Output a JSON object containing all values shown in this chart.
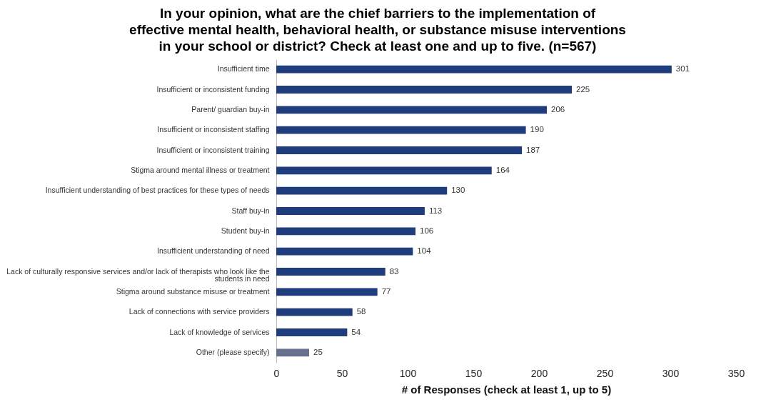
{
  "chart_data": {
    "type": "bar",
    "orientation": "horizontal",
    "title": "In your opinion, what are the chief barriers to the implementation of effective mental health, behavioral health, or substance misuse interventions in your school or district? Check at least one and up to five. (n=567)",
    "xlabel": "# of Responses (check at least 1, up to 5)",
    "categories": [
      "Insufficient time",
      "Insufficient or inconsistent funding",
      "Parent/ guardian buy-in",
      "Insufficient or inconsistent staffing",
      "Insufficient or inconsistent training",
      "Stigma around mental illness or treatment",
      "Insufficient understanding of best practices for these types of needs",
      "Staff buy-in",
      "Student buy-in",
      "Insufficient understanding of need",
      "Lack of culturally responsive services and/or lack of therapists who look like the students in need",
      "Stigma around substance misuse or treatment",
      "Lack of connections with service providers",
      "Lack of knowledge of services",
      "Other (please specify)"
    ],
    "values": [
      301,
      225,
      206,
      190,
      187,
      164,
      130,
      113,
      106,
      104,
      83,
      77,
      58,
      54,
      25
    ],
    "colors": [
      "#1f3d7c",
      "#1f3d7c",
      "#1f3d7c",
      "#1f3d7c",
      "#1f3d7c",
      "#1f3d7c",
      "#1f3d7c",
      "#1f3d7c",
      "#1f3d7c",
      "#1f3d7c",
      "#1f3d7c",
      "#1f3d7c",
      "#1f3d7c",
      "#1f3d7c",
      "#68708f"
    ],
    "xlim": [
      0,
      350
    ],
    "xticks": [
      0,
      50,
      100,
      150,
      200,
      250,
      300,
      350
    ],
    "data_labels": true,
    "grid": false,
    "legend": false
  }
}
